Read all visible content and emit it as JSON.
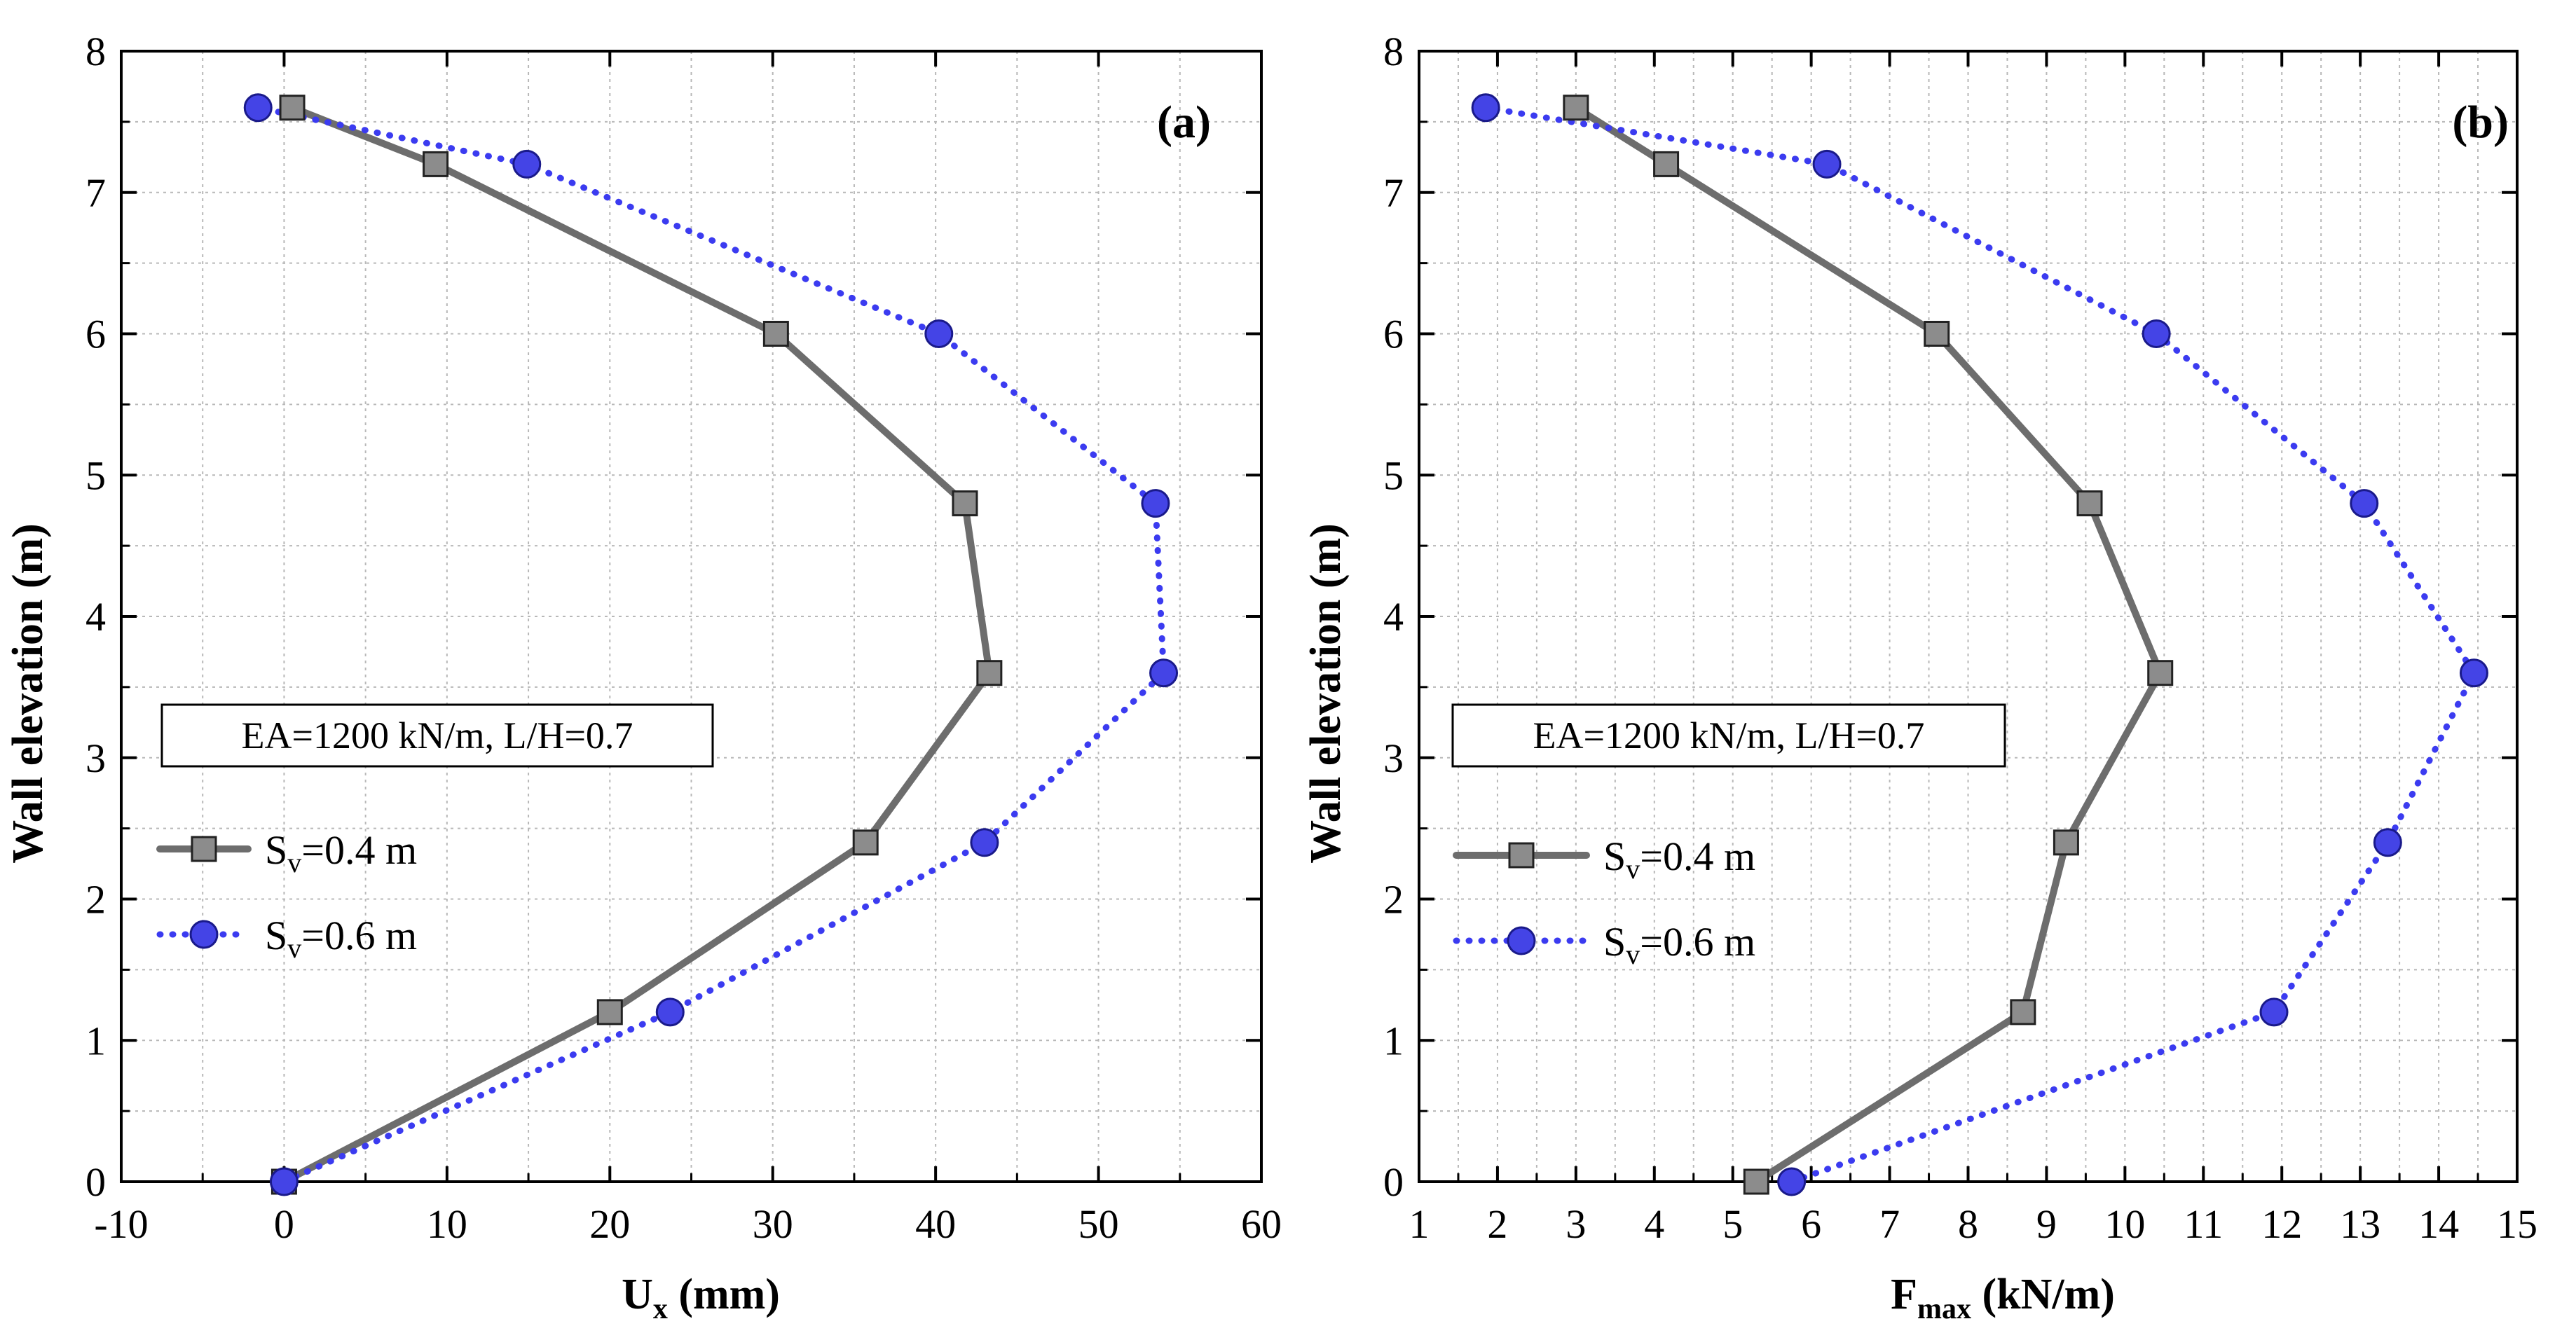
{
  "chart_data": [
    {
      "type": "line",
      "panel_label": "(a)",
      "annotation": "EA=1200 kN/m, L/H=0.7",
      "xlabel_main": "U",
      "xlabel_sub": "x",
      "xlabel_rest": " (mm)",
      "ylabel": "Wall elevation (m)",
      "xlim": [
        -10,
        60
      ],
      "ylim": [
        0,
        8
      ],
      "xticks": [
        -10,
        0,
        10,
        20,
        30,
        40,
        50,
        60
      ],
      "yticks": [
        0,
        1,
        2,
        3,
        4,
        5,
        6,
        7,
        8
      ],
      "x_minor_step": 5,
      "y_minor_step": 0.5,
      "grid": true,
      "legend_position": "center-left",
      "series": [
        {
          "name_main": "S",
          "name_sub": "v",
          "name_rest": "=0.4 m",
          "color": "#6d6d6d",
          "marker_color": "#8c8c8c",
          "marker": "square",
          "line": "solid",
          "x": [
            0,
            20,
            35.7,
            43.3,
            41.8,
            30.2,
            9.3,
            0.5
          ],
          "y": [
            0,
            1.2,
            2.4,
            3.6,
            4.8,
            6.0,
            7.2,
            7.6
          ]
        },
        {
          "name_main": "S",
          "name_sub": "v",
          "name_rest": "=0.6 m",
          "color": "#3b3bf0",
          "marker_color": "#4444e6",
          "marker": "circle",
          "line": "dotted",
          "x": [
            0,
            23.7,
            43,
            54,
            53.5,
            40.2,
            14.9,
            -1.6
          ],
          "y": [
            0,
            1.2,
            2.4,
            3.6,
            4.8,
            6.0,
            7.2,
            7.6
          ]
        }
      ]
    },
    {
      "type": "line",
      "panel_label": "(b)",
      "annotation": "EA=1200 kN/m, L/H=0.7",
      "xlabel_main": "F",
      "xlabel_sub": "max",
      "xlabel_rest": " (kN/m)",
      "ylabel": "Wall elevation (m)",
      "xlim": [
        1,
        15
      ],
      "ylim": [
        0,
        8
      ],
      "xticks": [
        1,
        2,
        3,
        4,
        5,
        6,
        7,
        8,
        9,
        10,
        11,
        12,
        13,
        14,
        15
      ],
      "yticks": [
        0,
        1,
        2,
        3,
        4,
        5,
        6,
        7,
        8
      ],
      "x_minor_step": 0.5,
      "y_minor_step": 0.5,
      "grid": true,
      "legend_position": "center-left",
      "series": [
        {
          "name_main": "S",
          "name_sub": "v",
          "name_rest": "=0.4 m",
          "color": "#6d6d6d",
          "marker_color": "#8c8c8c",
          "marker": "square",
          "line": "solid",
          "x": [
            5.3,
            8.7,
            9.25,
            10.45,
            9.55,
            7.6,
            4.15,
            3.0
          ],
          "y": [
            0,
            1.2,
            2.4,
            3.6,
            4.8,
            6.0,
            7.2,
            7.6
          ]
        },
        {
          "name_main": "S",
          "name_sub": "v",
          "name_rest": "=0.6 m",
          "color": "#3b3bf0",
          "marker_color": "#4444e6",
          "marker": "circle",
          "line": "dotted",
          "x": [
            5.75,
            11.9,
            13.35,
            14.45,
            13.05,
            10.4,
            6.2,
            1.85
          ],
          "y": [
            0,
            1.2,
            2.4,
            3.6,
            4.8,
            6.0,
            7.2,
            7.6
          ]
        }
      ]
    }
  ]
}
